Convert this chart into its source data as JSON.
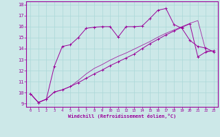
{
  "xlabel": "Windchill (Refroidissement éolien,°C)",
  "bg_color": "#cce8e8",
  "line_color": "#990099",
  "grid_color": "#aad8d8",
  "xlim_min": -0.5,
  "xlim_max": 23.5,
  "ylim_min": 8.7,
  "ylim_max": 18.3,
  "yticks": [
    9,
    10,
    11,
    12,
    13,
    14,
    15,
    16,
    17,
    18
  ],
  "xticks": [
    0,
    1,
    2,
    3,
    4,
    5,
    6,
    7,
    8,
    9,
    10,
    11,
    12,
    13,
    14,
    15,
    16,
    17,
    18,
    19,
    20,
    21,
    22,
    23
  ],
  "line1_x": [
    0,
    1,
    2,
    3,
    4,
    5,
    6,
    7,
    8,
    9,
    10,
    11,
    12,
    13,
    14,
    15,
    16,
    17,
    18,
    19,
    20,
    21,
    22,
    23
  ],
  "line1_y": [
    9.9,
    9.1,
    9.4,
    10.05,
    10.25,
    10.55,
    10.9,
    11.3,
    11.7,
    12.05,
    12.45,
    12.8,
    13.15,
    13.5,
    14.0,
    14.45,
    14.85,
    15.25,
    15.6,
    15.95,
    16.25,
    13.25,
    13.7,
    13.8
  ],
  "line2_x": [
    0,
    1,
    2,
    3,
    4,
    5,
    6,
    7,
    8,
    9,
    10,
    11,
    12,
    13,
    14,
    15,
    16,
    17,
    18,
    19,
    20,
    21,
    22,
    23
  ],
  "line2_y": [
    9.9,
    9.1,
    9.4,
    12.4,
    14.2,
    14.35,
    15.0,
    15.85,
    15.95,
    16.0,
    16.0,
    15.05,
    16.0,
    16.0,
    16.05,
    16.75,
    17.5,
    17.65,
    16.2,
    15.85,
    14.75,
    14.2,
    14.05,
    13.7
  ],
  "line3_x": [
    0,
    1,
    2,
    3,
    4,
    5,
    6,
    7,
    8,
    9,
    10,
    11,
    12,
    13,
    14,
    15,
    16,
    17,
    18,
    19,
    20,
    21,
    22,
    23
  ],
  "line3_y": [
    9.9,
    9.1,
    9.4,
    10.05,
    10.25,
    10.55,
    11.1,
    11.7,
    12.2,
    12.55,
    12.95,
    13.3,
    13.6,
    13.95,
    14.3,
    14.65,
    15.05,
    15.4,
    15.7,
    16.0,
    16.3,
    16.55,
    13.8,
    13.8
  ]
}
